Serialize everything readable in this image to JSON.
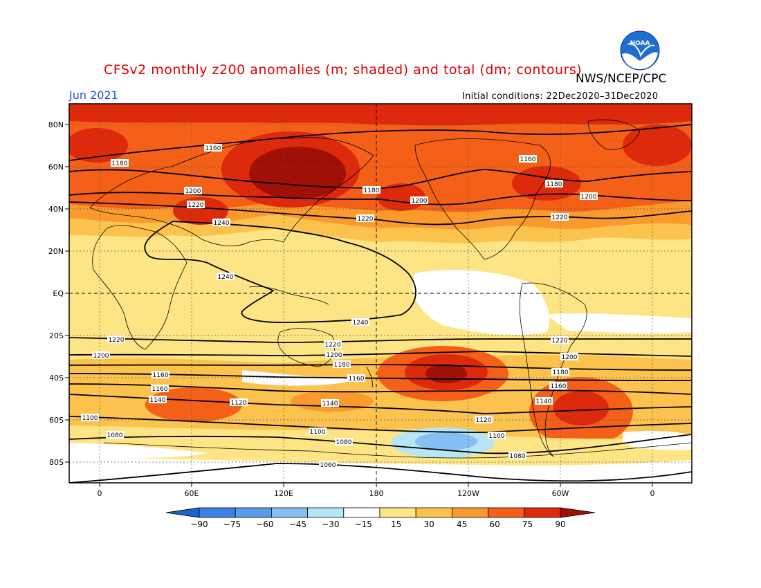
{
  "title": "CFSv2 monthly z200 anomalies (m; shaded) and total (dm; contours)",
  "agency": "NWS/NCEP/CPC",
  "month": "Jun 2021",
  "initial_conditions": "Initial conditions: 22Dec2020–31Dec2020",
  "logo_text": "NOAA",
  "colors": {
    "title": "#e00000",
    "month": "#1d4fd8"
  },
  "lat_labels": [
    "80N",
    "60N",
    "40N",
    "20N",
    "EQ",
    "20S",
    "40S",
    "60S",
    "80S"
  ],
  "lon_labels": [
    "0",
    "60E",
    "120E",
    "180",
    "120W",
    "60W",
    "0"
  ],
  "colorbar": {
    "levels": [
      "−90",
      "−75",
      "−60",
      "−45",
      "−30",
      "−15",
      "15",
      "30",
      "45",
      "60",
      "75",
      "90"
    ],
    "colors": [
      "#1f5fd6",
      "#3c82e6",
      "#5a9cec",
      "#86bff2",
      "#b6e6f5",
      "#ffffff",
      "#fde484",
      "#fcc24e",
      "#fb9a2c",
      "#f46018",
      "#de2a0c",
      "#a01006"
    ]
  },
  "contour_labels": {
    "c1160_n": "1160",
    "c1180_n": "1180",
    "c1200_n": "1200",
    "c1220_n": "1220",
    "c1240_n": "1240",
    "c1240_s": "1240",
    "c1220_s": "1220",
    "c1200_s": "1200",
    "c1180_s": "1180",
    "c1160_s": "1160",
    "c1140_s": "1140",
    "c1120_s": "1120",
    "c1100_s": "1100",
    "c1080_s": "1080",
    "c1060_s": "1060"
  }
}
